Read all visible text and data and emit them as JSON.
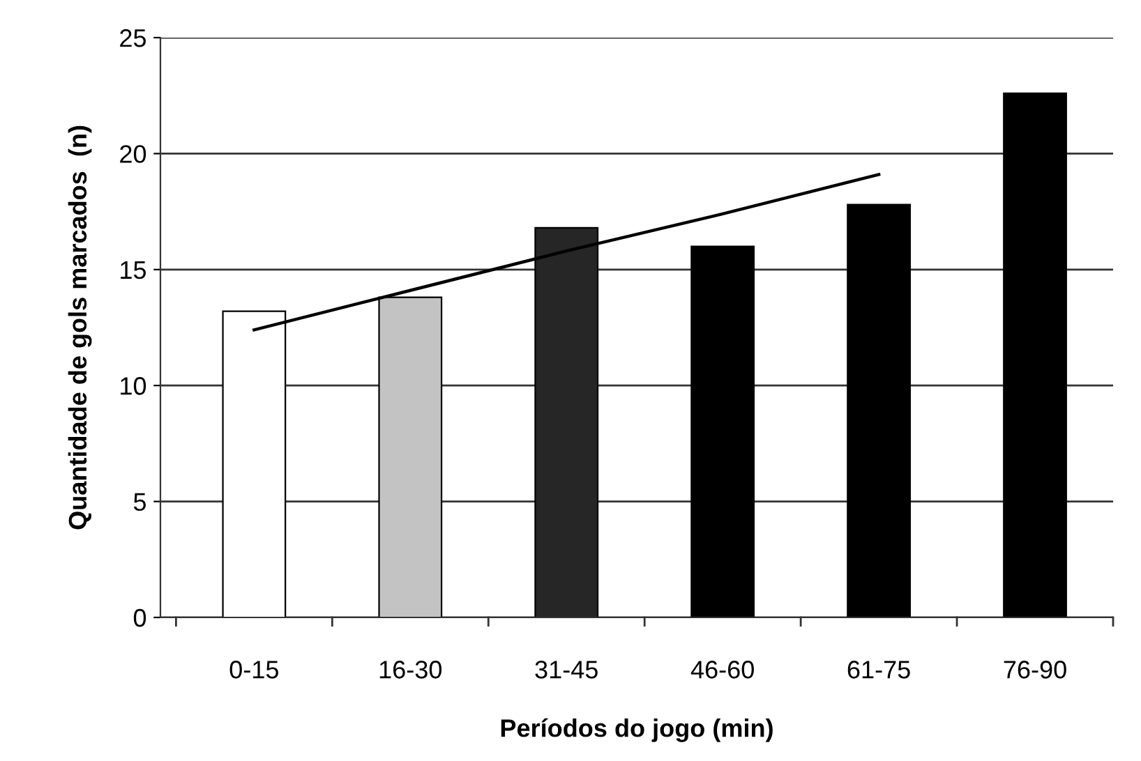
{
  "chart_data": {
    "type": "bar",
    "xlabel": "Períodos do jogo (min)",
    "ylabel": "Quantidade de gols marcados  (n)",
    "categories": [
      "0-15",
      "16-30",
      "31-45",
      "46-60",
      "61-75",
      "76-90"
    ],
    "series": [
      {
        "values": [
          13.2,
          13.8,
          16.8,
          16.0,
          17.8,
          22.6
        ],
        "colors": [
          "#ffffff",
          "#c3c3c3",
          "#262626",
          "#000000",
          "#000000",
          "#000000"
        ]
      },
      {
        "type": "line",
        "values": [
          12.4,
          14.1,
          15.8,
          17.4,
          19.1,
          null
        ],
        "color": "#000000"
      }
    ],
    "ylim": [
      0,
      25
    ],
    "yticks": [
      0,
      5,
      10,
      15,
      20,
      25
    ],
    "grid": "y",
    "legend": false
  }
}
